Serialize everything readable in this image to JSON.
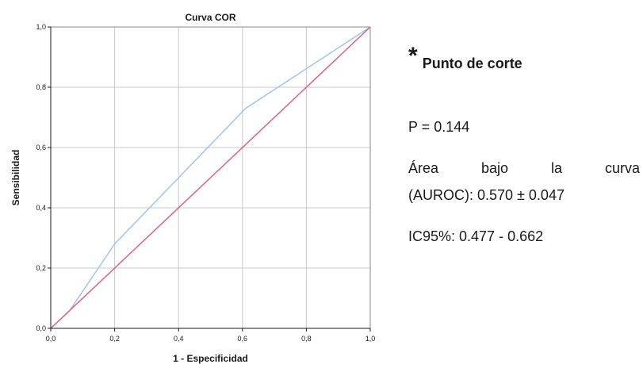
{
  "chart_data": {
    "type": "line",
    "title": "Curva COR",
    "xlabel": "1 - Especificidad",
    "ylabel": "Sensibilidad",
    "xlim": [
      0,
      1
    ],
    "ylim": [
      0,
      1
    ],
    "grid": true,
    "x_ticks": [
      "0,0",
      "0,2",
      "0,4",
      "0,6",
      "0,8",
      "1,0"
    ],
    "y_ticks": [
      "0,0",
      "0,2",
      "0,4",
      "0,6",
      "0,8",
      "1,0"
    ],
    "series": [
      {
        "color": "#9ec5f0",
        "points": [
          [
            0,
            0
          ],
          [
            0.06,
            0.06
          ],
          [
            0.2,
            0.28
          ],
          [
            0.61,
            0.73
          ],
          [
            1,
            1
          ]
        ]
      },
      {
        "color": "#e0607e",
        "points": [
          [
            0,
            0
          ],
          [
            1,
            1
          ]
        ]
      }
    ]
  },
  "annotation": {
    "asterisk": "*",
    "heading": "Punto de corte",
    "p_value": "P = 0.144",
    "area_words": [
      "Área",
      "bajo",
      "la",
      "curva"
    ],
    "area_value": "(AUROC): 0.570 ± 0.047",
    "ci": "IC95%: 0.477 - 0.662"
  }
}
